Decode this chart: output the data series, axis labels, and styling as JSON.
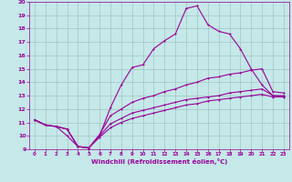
{
  "title": "",
  "xlabel": "Windchill (Refroidissement éolien,°C)",
  "xlim": [
    -0.5,
    23.5
  ],
  "ylim": [
    9,
    20
  ],
  "xticks": [
    0,
    1,
    2,
    3,
    4,
    5,
    6,
    7,
    8,
    9,
    10,
    11,
    12,
    13,
    14,
    15,
    16,
    17,
    18,
    19,
    20,
    21,
    22,
    23
  ],
  "yticks": [
    9,
    10,
    11,
    12,
    13,
    14,
    15,
    16,
    17,
    18,
    19,
    20
  ],
  "bg_color": "#c5e8e8",
  "line_color": "#990099",
  "grid_color": "#99bbbb",
  "line1_x": [
    0,
    1,
    2,
    3,
    4,
    5,
    6,
    7,
    8,
    9,
    10,
    11,
    12,
    13,
    14,
    15,
    16,
    17,
    18,
    19,
    20,
    21,
    22,
    23
  ],
  "line1_y": [
    11.2,
    10.8,
    10.7,
    10.0,
    9.2,
    9.1,
    10.0,
    12.1,
    13.8,
    15.1,
    15.3,
    16.5,
    17.1,
    17.6,
    19.5,
    19.7,
    18.3,
    17.8,
    17.6,
    16.5,
    15.0,
    13.8,
    13.0,
    13.0
  ],
  "line2_x": [
    0,
    1,
    2,
    3,
    4,
    5,
    6,
    7,
    8,
    9,
    10,
    11,
    12,
    13,
    14,
    15,
    16,
    17,
    18,
    19,
    20,
    21,
    22,
    23
  ],
  "line2_y": [
    11.2,
    10.8,
    10.7,
    10.5,
    9.2,
    9.1,
    10.1,
    11.5,
    12.0,
    12.5,
    12.8,
    13.0,
    13.3,
    13.5,
    13.8,
    14.0,
    14.3,
    14.4,
    14.6,
    14.7,
    14.9,
    15.0,
    13.3,
    13.2
  ],
  "line3_x": [
    0,
    1,
    2,
    3,
    4,
    5,
    6,
    7,
    8,
    9,
    10,
    11,
    12,
    13,
    14,
    15,
    16,
    17,
    18,
    19,
    20,
    21,
    22,
    23
  ],
  "line3_y": [
    11.2,
    10.8,
    10.7,
    10.5,
    9.2,
    9.1,
    10.0,
    10.9,
    11.3,
    11.7,
    11.9,
    12.1,
    12.3,
    12.5,
    12.7,
    12.8,
    12.9,
    13.0,
    13.2,
    13.3,
    13.4,
    13.5,
    13.0,
    12.95
  ],
  "line4_x": [
    0,
    1,
    2,
    3,
    4,
    5,
    6,
    7,
    8,
    9,
    10,
    11,
    12,
    13,
    14,
    15,
    16,
    17,
    18,
    19,
    20,
    21,
    22,
    23
  ],
  "line4_y": [
    11.2,
    10.8,
    10.7,
    10.5,
    9.2,
    9.1,
    9.9,
    10.6,
    11.0,
    11.3,
    11.5,
    11.7,
    11.9,
    12.1,
    12.3,
    12.4,
    12.6,
    12.7,
    12.8,
    12.9,
    13.0,
    13.1,
    12.9,
    12.9
  ]
}
